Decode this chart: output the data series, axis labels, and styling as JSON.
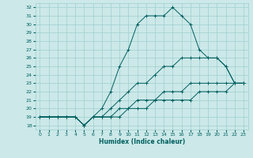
{
  "xlabel": "Humidex (Indice chaleur)",
  "xlim": [
    -0.5,
    23.5
  ],
  "ylim": [
    17.5,
    32.5
  ],
  "yticks": [
    18,
    19,
    20,
    21,
    22,
    23,
    24,
    25,
    26,
    27,
    28,
    29,
    30,
    31,
    32
  ],
  "xticks": [
    0,
    1,
    2,
    3,
    4,
    5,
    6,
    7,
    8,
    9,
    10,
    11,
    12,
    13,
    14,
    15,
    16,
    17,
    18,
    19,
    20,
    21,
    22,
    23
  ],
  "bg_color": "#cce8e8",
  "line_color": "#006060",
  "grid_color": "#9ecfcf",
  "lines": [
    [
      19,
      19,
      19,
      19,
      19,
      18,
      19,
      20,
      22,
      25,
      27,
      30,
      31,
      31,
      31,
      32,
      31,
      30,
      27,
      26,
      26,
      25,
      23,
      23
    ],
    [
      19,
      19,
      19,
      19,
      19,
      18,
      19,
      19,
      20,
      21,
      22,
      23,
      23,
      24,
      25,
      25,
      26,
      26,
      26,
      26,
      26,
      25,
      23,
      23
    ],
    [
      19,
      19,
      19,
      19,
      19,
      18,
      19,
      19,
      19,
      20,
      20,
      21,
      21,
      21,
      22,
      22,
      22,
      23,
      23,
      23,
      23,
      23,
      23,
      23
    ],
    [
      19,
      19,
      19,
      19,
      19,
      18,
      19,
      19,
      19,
      19,
      20,
      20,
      20,
      21,
      21,
      21,
      21,
      21,
      22,
      22,
      22,
      22,
      23,
      23
    ]
  ]
}
